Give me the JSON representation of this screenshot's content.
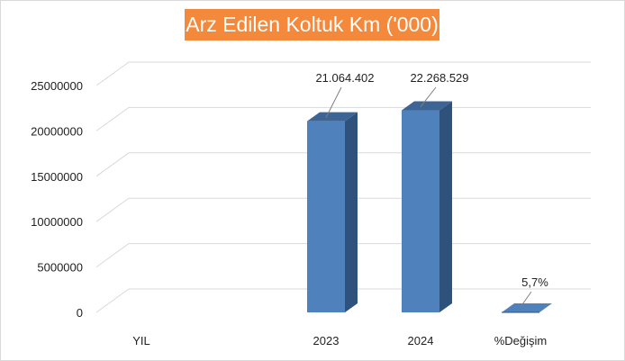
{
  "chart_data": {
    "type": "bar",
    "title": "Arz Edilen Koltuk Km ('000)",
    "categories": [
      "YIL",
      "2023",
      "2024",
      "%Değişim"
    ],
    "values": [
      0,
      21064402,
      22268529,
      0.057
    ],
    "data_labels": [
      "",
      "21.064.402",
      "22.268.529",
      "5,7%"
    ],
    "yticks": [
      "0",
      "5000000",
      "10000000",
      "15000000",
      "20000000",
      "25000000"
    ],
    "ylim": [
      0,
      25000000
    ],
    "xlabel": "",
    "ylabel": "",
    "grid": true,
    "legend": "none",
    "three_d": true,
    "colors": {
      "bar_front": "#4f81bd",
      "bar_side": "#2f527c",
      "bar_top": "#3c6494",
      "grid": "#d9d9d9",
      "title_bg": "#f4883b",
      "title_text": "#ffffff"
    }
  }
}
